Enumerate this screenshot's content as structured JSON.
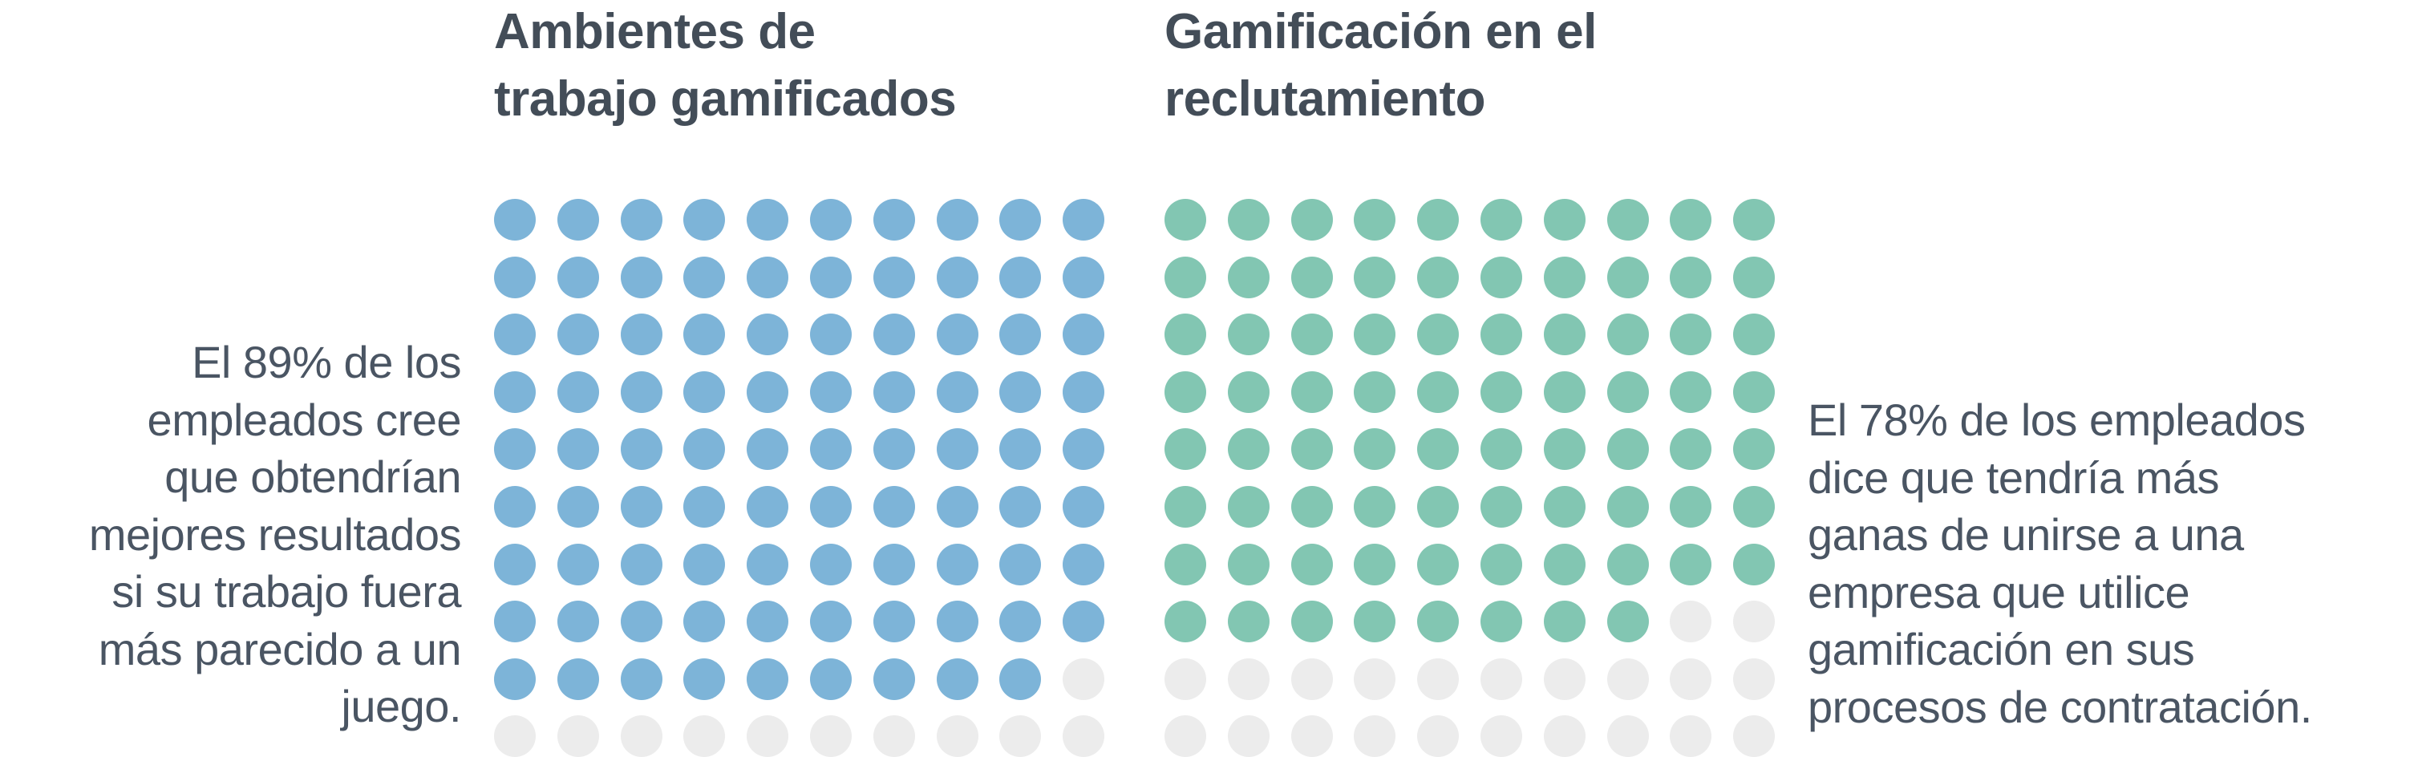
{
  "chart_data": [
    {
      "type": "waffle",
      "title_lines": [
        "Ambientes de",
        "trabajo gamificados"
      ],
      "value": 89,
      "total": 100,
      "rows": 10,
      "columns": 10,
      "fill_color": "#7db4d8",
      "empty_color": "#ececec",
      "caption_lines": [
        "El 89% de los",
        "empleados cree",
        "que obtendrían",
        "mejores resultados",
        "si su trabajo fuera",
        "más parecido a un",
        "juego."
      ]
    },
    {
      "type": "waffle",
      "title_lines": [
        "Gamificación en el",
        "reclutamiento"
      ],
      "value": 78,
      "total": 100,
      "rows": 10,
      "columns": 10,
      "fill_color": "#82c6b2",
      "empty_color": "#ececec",
      "caption_lines": [
        "El 78% de los empleados",
        "dice que tendría más",
        "ganas de unirse a una",
        "empresa que utilice",
        "gamificación en sus",
        "procesos de contratación."
      ]
    }
  ]
}
